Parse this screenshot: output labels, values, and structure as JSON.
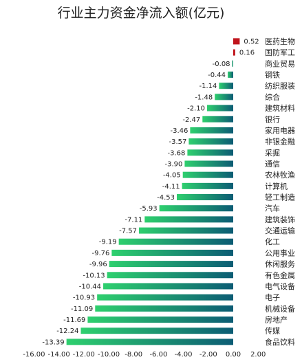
{
  "chart_data": {
    "type": "bar",
    "orientation": "horizontal",
    "title": "行业主力资金净流入额(亿元)",
    "xlabel": "",
    "ylabel": "",
    "xlim": [
      -16,
      2
    ],
    "x_ticks": [
      "-16.00",
      "-14.00",
      "-12.00",
      "-10.00",
      "-8.00",
      "-6.00",
      "-4.00",
      "-2.00",
      "0.00",
      "2.00"
    ],
    "x_tick_values": [
      -16,
      -14,
      -12,
      -10,
      -8,
      -6,
      -4,
      -2,
      0,
      2
    ],
    "grid": false,
    "legend": "none",
    "colors": {
      "positive": "#c0141c",
      "negative_start": "#2ed06e",
      "negative_end": "#0c5c74"
    },
    "categories": [
      "医药生物",
      "国防军工",
      "商业贸易",
      "钢铁",
      "纺织服装",
      "综合",
      "建筑材料",
      "银行",
      "家用电器",
      "非银金融",
      "采掘",
      "通信",
      "农林牧渔",
      "计算机",
      "轻工制造",
      "汽车",
      "建筑装饰",
      "交通运输",
      "化工",
      "公用事业",
      "休闲服务",
      "有色金属",
      "电气设备",
      "电子",
      "机械设备",
      "房地产",
      "传媒",
      "食品饮料"
    ],
    "values": [
      0.52,
      0.16,
      -0.08,
      -0.44,
      -1.14,
      -1.48,
      -2.1,
      -2.47,
      -3.46,
      -3.57,
      -3.68,
      -3.9,
      -4.05,
      -4.11,
      -4.53,
      -5.93,
      -7.11,
      -7.57,
      -9.19,
      -9.76,
      -9.96,
      -10.13,
      -10.44,
      -10.93,
      -11.09,
      -11.69,
      -12.24,
      -13.39
    ],
    "value_labels": [
      "0.52",
      "0.16",
      "-0.08",
      "-0.44",
      "-1.14",
      "-1.48",
      "-2.10",
      "-2.47",
      "-3.46",
      "-3.57",
      "-3.68",
      "-3.90",
      "-4.05",
      "-4.11",
      "-4.53",
      "-5.93",
      "-7.11",
      "-7.57",
      "-9.19",
      "-9.76",
      "-9.96",
      "-10.13",
      "-10.44",
      "-10.93",
      "-11.09",
      "-11.69",
      "-12.24",
      "-13.39"
    ]
  }
}
